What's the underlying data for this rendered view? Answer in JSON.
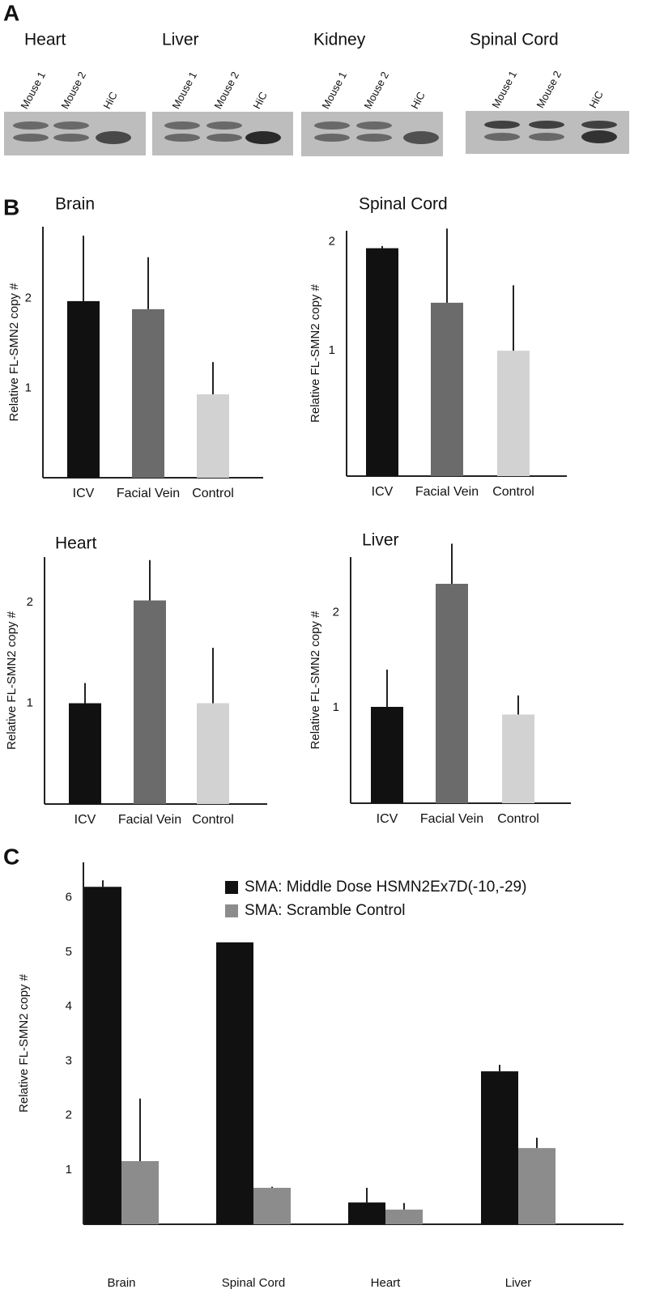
{
  "panel_labels": [
    "A",
    "B",
    "C"
  ],
  "gels": [
    {
      "title": "Heart",
      "lanes": [
        "Mouse 1",
        "Mouse 2",
        "HiC"
      ]
    },
    {
      "title": "Liver",
      "lanes": [
        "Mouse 1",
        "Mouse 2",
        "HiC"
      ]
    },
    {
      "title": "Kidney",
      "lanes": [
        "Mouse 1",
        "Mouse 2",
        "HiC"
      ]
    },
    {
      "title": "Spinal Cord",
      "lanes": [
        "Mouse 1",
        "Mouse 2",
        "HiC"
      ]
    }
  ],
  "chart_data": [
    {
      "type": "bar",
      "title": "Brain",
      "y_label": "Relative FL-SMN2 copy #",
      "categories": [
        "ICV",
        "Facial Vein",
        "Control"
      ],
      "values": [
        1.97,
        1.88,
        0.93
      ],
      "errors": [
        0.73,
        0.58,
        0.36
      ],
      "colors": [
        "#111111",
        "#6b6b6b",
        "#d2d2d2"
      ],
      "ylim": [
        0,
        2.8
      ],
      "yticks": [
        1,
        2
      ]
    },
    {
      "type": "bar",
      "title": "Spinal Cord",
      "y_label": "Relative FL-SMN2 copy #",
      "categories": [
        "ICV",
        "Facial Vein",
        "Control"
      ],
      "values": [
        1.94,
        1.44,
        1.0
      ],
      "errors": [
        0.02,
        0.68,
        0.6
      ],
      "colors": [
        "#111111",
        "#6b6b6b",
        "#d2d2d2"
      ],
      "ylim": [
        -0.15,
        2.1
      ],
      "yticks": [
        1,
        2
      ]
    },
    {
      "type": "bar",
      "title": "Heart",
      "y_label": "Relative FL-SMN2 copy #",
      "categories": [
        "ICV",
        "Facial Vein",
        "Control"
      ],
      "values": [
        1.0,
        2.02,
        1.0
      ],
      "errors": [
        0.2,
        0.4,
        0.55
      ],
      "colors": [
        "#111111",
        "#6b6b6b",
        "#d2d2d2"
      ],
      "ylim": [
        0,
        2.45
      ],
      "yticks": [
        1,
        2
      ]
    },
    {
      "type": "bar",
      "title": "Liver",
      "y_label": "Relative FL-SMN2 copy #",
      "categories": [
        "ICV",
        "Facial Vein",
        "Control"
      ],
      "values": [
        1.01,
        2.3,
        0.93
      ],
      "errors": [
        0.39,
        0.42,
        0.2
      ],
      "colors": [
        "#111111",
        "#6b6b6b",
        "#d2d2d2"
      ],
      "ylim": [
        0,
        2.58
      ],
      "yticks": [
        1,
        2
      ]
    },
    {
      "type": "grouped_bar",
      "y_label": "Relative FL-SMN2 copy #",
      "categories": [
        "Brain",
        "Spinal Cord",
        "Heart",
        "Liver"
      ],
      "series": [
        {
          "name": "SMA:  Middle Dose HSMN2Ex7D(-10,-29)",
          "color": "#111111",
          "values": [
            6.2,
            5.18,
            0.4,
            2.81
          ],
          "errors": [
            0.12,
            0,
            0.27,
            0.12
          ]
        },
        {
          "name": "SMA:  Scramble Control",
          "color": "#8c8c8c",
          "values": [
            1.16,
            0.67,
            0.27,
            1.4
          ],
          "errors": [
            1.15,
            0.02,
            0.12,
            0.19
          ]
        }
      ],
      "ylim": [
        0,
        6.65
      ],
      "yticks": [
        1,
        2,
        3,
        4,
        5,
        6
      ],
      "legend": "upper right"
    }
  ]
}
